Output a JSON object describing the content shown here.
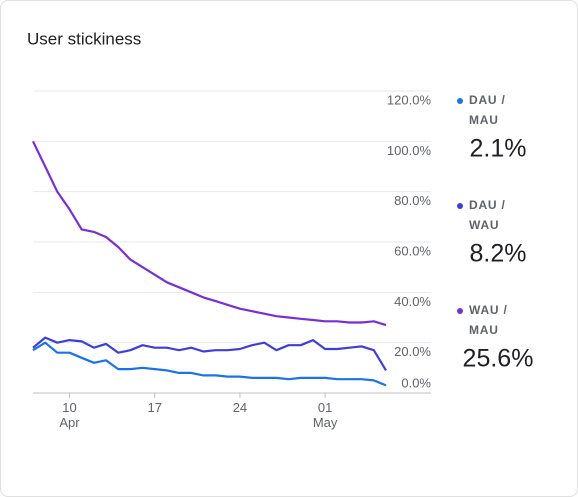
{
  "chart_data": {
    "type": "line",
    "title": "User stickiness",
    "categories": [
      null,
      null,
      null,
      "10\nApr",
      null,
      null,
      null,
      null,
      null,
      null,
      "17",
      null,
      null,
      null,
      null,
      null,
      null,
      "24",
      null,
      null,
      null,
      null,
      null,
      null,
      "01\nMay",
      null,
      null,
      null,
      null,
      null
    ],
    "series": [
      {
        "name": "DAU / MAU",
        "color": "#1a73e8",
        "summary": {
          "value": 2.1,
          "label": "2.1%"
        },
        "values": [
          17,
          20,
          16,
          16,
          14,
          12,
          13,
          9.5,
          9.5,
          10,
          9.5,
          9,
          8,
          8,
          7,
          7,
          6.5,
          6.5,
          6,
          6,
          6,
          5.5,
          6,
          6,
          6,
          5.5,
          5.5,
          5.5,
          5,
          3
        ]
      },
      {
        "name": "DAU / WAU",
        "color": "#3f3fd8",
        "summary": {
          "value": 8.2,
          "label": "8.2%"
        },
        "values": [
          18,
          22,
          20,
          21,
          20.5,
          18,
          19.5,
          16,
          17,
          19,
          18,
          18,
          17,
          18,
          16.5,
          17,
          17,
          17.5,
          19,
          20,
          17,
          19,
          19,
          21,
          17.5,
          17.5,
          18,
          18.5,
          17,
          9
        ]
      },
      {
        "name": "WAU / MAU",
        "color": "#7a2fd4",
        "summary": {
          "value": 25.6,
          "label": "25.6%"
        },
        "values": [
          100,
          90,
          80,
          73,
          65,
          64,
          62,
          58,
          53,
          50,
          47,
          44,
          42,
          40,
          38,
          36.5,
          35,
          33.5,
          32.5,
          31.5,
          30.5,
          30,
          29.5,
          29,
          28.5,
          28.5,
          28,
          28,
          28.5,
          27
        ]
      }
    ],
    "ylim": [
      0,
      120
    ],
    "yticks": [
      {
        "value": 0,
        "label": "0.0%"
      },
      {
        "value": 20,
        "label": "20.0%"
      },
      {
        "value": 40,
        "label": "40.0%"
      },
      {
        "value": 60,
        "label": "60.0%"
      },
      {
        "value": 80,
        "label": "80.0%"
      },
      {
        "value": 100,
        "label": "100.0%"
      },
      {
        "value": 120,
        "label": "120.0%"
      }
    ],
    "grid": true
  }
}
